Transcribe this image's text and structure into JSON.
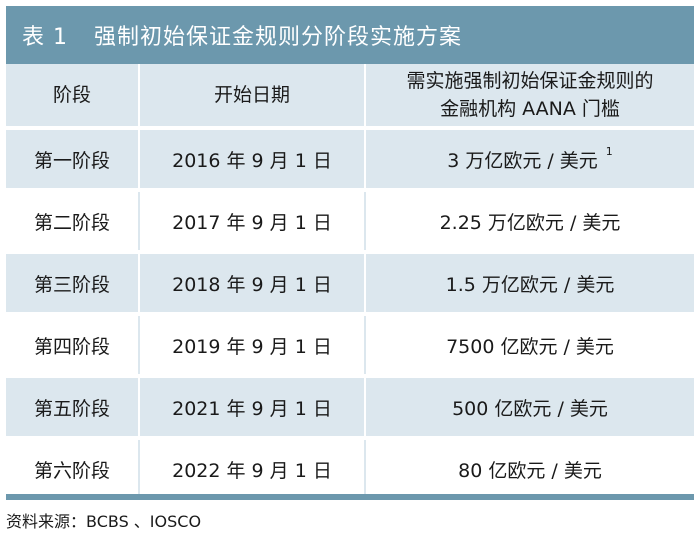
{
  "title": {
    "number": "表 1",
    "text": "强制初始保证金规则分阶段实施方案"
  },
  "table": {
    "headers": {
      "phase": "阶段",
      "start_date": "开始日期",
      "aana_line1": "需实施强制初始保证金规则的",
      "aana_line2": "金融机构 AANA 门槛"
    },
    "rows": [
      {
        "phase": "第一阶段",
        "start_date": "2016 年 9 月 1 日",
        "threshold": "3 万亿欧元 / 美元",
        "note": "1"
      },
      {
        "phase": "第二阶段",
        "start_date": "2017 年 9 月 1 日",
        "threshold": "2.25 万亿欧元 / 美元",
        "note": ""
      },
      {
        "phase": "第三阶段",
        "start_date": "2018 年 9 月 1 日",
        "threshold": "1.5 万亿欧元 / 美元",
        "note": ""
      },
      {
        "phase": "第四阶段",
        "start_date": "2019 年 9 月 1 日",
        "threshold": "7500 亿欧元 / 美元",
        "note": ""
      },
      {
        "phase": "第五阶段",
        "start_date": "2021 年 9 月 1 日",
        "threshold": "500 亿欧元 / 美元",
        "note": ""
      },
      {
        "phase": "第六阶段",
        "start_date": "2022 年 9 月 1 日",
        "threshold": "80 亿欧元 / 美元",
        "note": ""
      }
    ]
  },
  "source": "资料来源：BCBS 、IOSCO",
  "colors": {
    "title_bg": "#6c98ad",
    "alt_row_bg": "#dce7ee"
  }
}
